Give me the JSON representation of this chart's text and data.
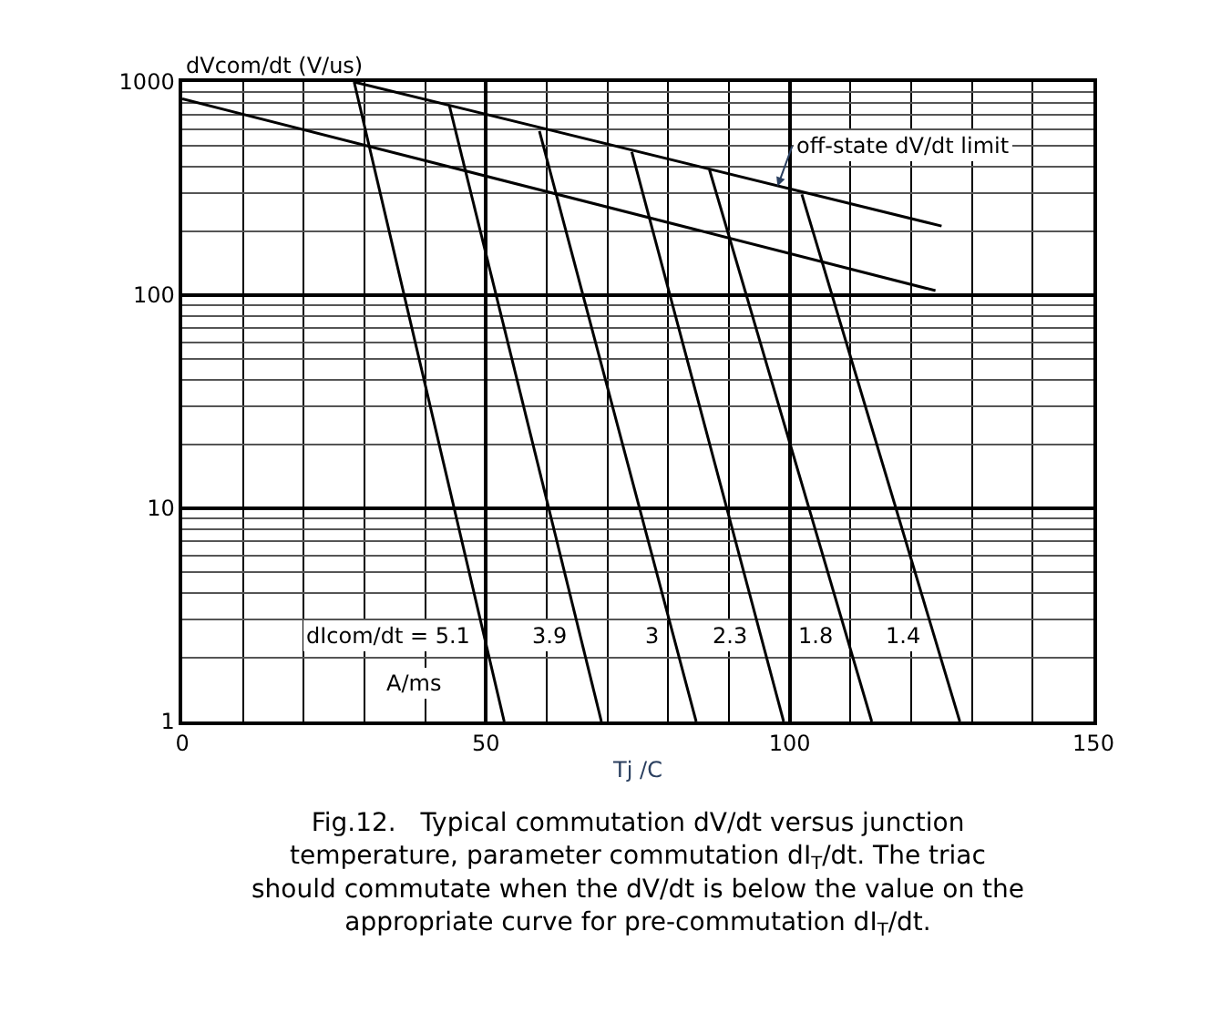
{
  "chart_data": {
    "type": "line",
    "ylabel": "dVcom/dt (V/us)",
    "xlabel": "Tj /C",
    "log": "y",
    "grid": true,
    "legend": false,
    "marker": "none",
    "line_style": "solid",
    "xlim": [
      0,
      150
    ],
    "xticks": [
      0,
      50,
      100,
      150
    ],
    "ylim": [
      1,
      1000
    ],
    "yticks": [
      1,
      10,
      100,
      1000
    ],
    "series": [
      {
        "color": "#000000",
        "x": [
          28.3,
          125
        ],
        "values": [
          1000,
          211
        ]
      },
      {
        "color": "#000000",
        "x": [
          0,
          124
        ],
        "values": [
          834,
          105
        ]
      },
      {
        "name": "dIcom/dt = 5.1",
        "color": "#000000",
        "x": [
          28.3,
          53
        ],
        "values": [
          1000,
          1
        ]
      },
      {
        "name": "3.9",
        "color": "#000000",
        "x": [
          44,
          69
        ],
        "values": [
          769,
          1
        ]
      },
      {
        "name": "3",
        "color": "#000000",
        "x": [
          58.8,
          84.6
        ],
        "values": [
          589,
          1
        ]
      },
      {
        "name": "2.3",
        "color": "#000000",
        "x": [
          74,
          99
        ],
        "values": [
          470,
          1
        ]
      },
      {
        "name": "1.8",
        "color": "#000000",
        "x": [
          86.8,
          113.5
        ],
        "values": [
          387,
          1
        ]
      },
      {
        "name": "1.4",
        "color": "#000000",
        "x": [
          102,
          128
        ],
        "values": [
          297,
          1
        ]
      }
    ],
    "annotations": [
      {
        "text": "off-state dV/dt limit",
        "x": 98,
        "y": 324
      },
      "A/ms",
      "Fig.12.   Typical commutation dV/dt versus junction temperature, parameter commutation dI$_{T}$/dt. The triac should commutate when the dV/dt is below the value on the appropriate curve for pre-commutation dI$_{T}$/dt."
    ]
  }
}
